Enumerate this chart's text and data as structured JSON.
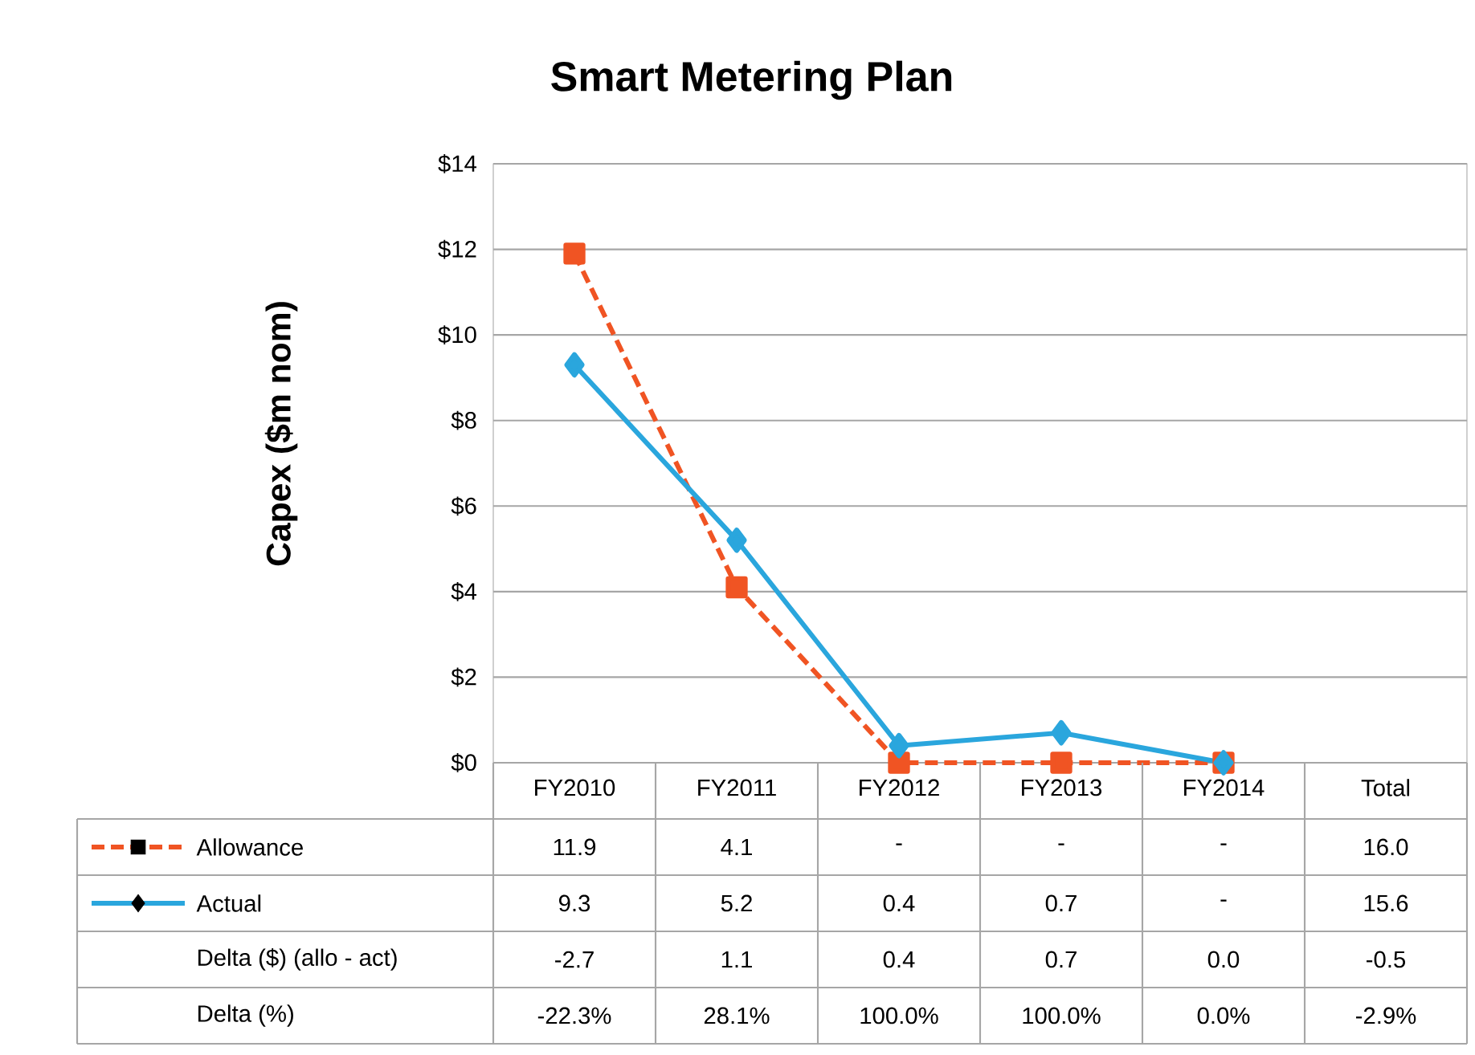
{
  "chart_data": {
    "type": "line",
    "title": "Smart Metering Plan",
    "ylabel": "Capex ($m nom)",
    "categories": [
      "FY2010",
      "FY2011",
      "FY2012",
      "FY2013",
      "FY2014",
      "Total"
    ],
    "series": [
      {
        "name": "Allowance",
        "color": "#f05423",
        "line_style": "dashed",
        "marker": "square",
        "values": [
          11.9,
          4.1,
          0,
          0,
          0,
          null
        ]
      },
      {
        "name": "Actual",
        "color": "#2aa6dd",
        "line_style": "solid",
        "marker": "diamond",
        "values": [
          9.3,
          5.2,
          0.4,
          0.7,
          0,
          null
        ]
      }
    ],
    "ylim": [
      0,
      14
    ],
    "yticks": [
      {
        "value": 0,
        "label": "$0"
      },
      {
        "value": 2,
        "label": "$2"
      },
      {
        "value": 4,
        "label": "$4"
      },
      {
        "value": 6,
        "label": "$6"
      },
      {
        "value": 8,
        "label": "$8"
      },
      {
        "value": 10,
        "label": "$10"
      },
      {
        "value": 12,
        "label": "$12"
      },
      {
        "value": 14,
        "label": "$14"
      }
    ],
    "grid": "y",
    "legend": "bottom",
    "annotations": [
      "11.9",
      "4.1",
      "-",
      "-",
      "-",
      "16.0",
      "9.3",
      "5.2",
      "0.4",
      "0.7",
      "-",
      "15.6",
      "Delta ($) (allo - act)",
      "-2.7",
      "1.1",
      "0.4",
      "0.7",
      "0.0",
      "-0.5",
      "Delta (%)",
      "-22.3%",
      "28.1%",
      "100.0%",
      "100.0%",
      "0.0%",
      "-2.9%"
    ]
  }
}
